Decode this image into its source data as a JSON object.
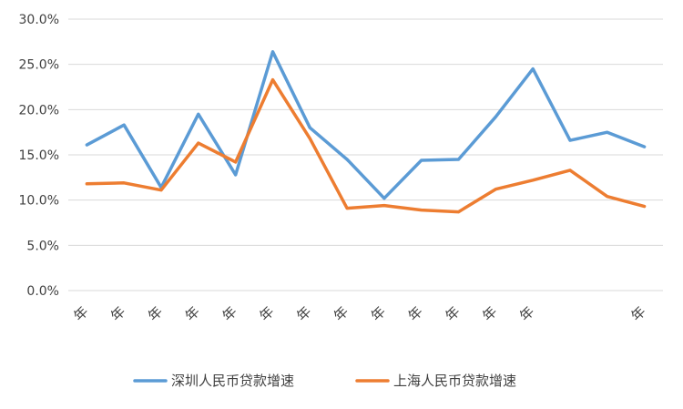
{
  "chart_data": {
    "type": "line",
    "title": "",
    "xlabel": "",
    "ylabel": "",
    "ylim": [
      0,
      0.3
    ],
    "yticks": [
      "0.0%",
      "5.0%",
      "10.0%",
      "15.0%",
      "20.0%",
      "25.0%",
      "30.0%"
    ],
    "categories": [
      "年",
      "年",
      "年",
      "年",
      "年",
      "年",
      "年",
      "年",
      "年",
      "年",
      "年",
      "年",
      "年",
      "",
      "",
      "年"
    ],
    "grid": true,
    "legend_position": "bottom",
    "series": [
      {
        "name": "深圳人民币贷款增速",
        "color": "#5B9BD5",
        "values": [
          0.161,
          0.183,
          0.114,
          0.195,
          0.128,
          0.264,
          0.18,
          0.145,
          0.102,
          0.144,
          0.145,
          0.192,
          0.245,
          0.166,
          0.175,
          0.159
        ]
      },
      {
        "name": "上海人民币贷款增速",
        "color": "#ED7D31",
        "values": [
          0.118,
          0.119,
          0.111,
          0.163,
          0.142,
          0.233,
          0.168,
          0.091,
          0.094,
          0.089,
          0.087,
          0.112,
          0.122,
          0.133,
          0.104,
          0.093
        ]
      }
    ]
  }
}
